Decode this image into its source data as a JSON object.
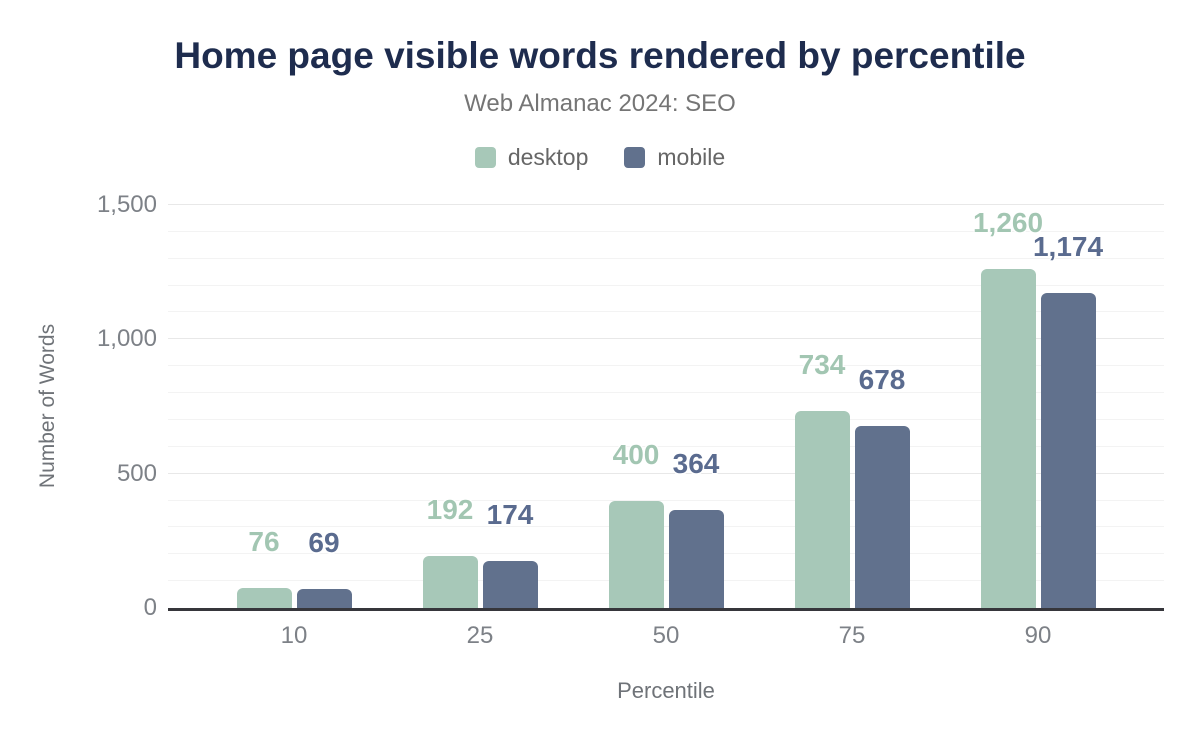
{
  "chart_data": {
    "type": "bar",
    "title": "Home page visible words rendered by percentile",
    "subtitle": "Web Almanac 2024: SEO",
    "xlabel": "Percentile",
    "ylabel": "Number of Words",
    "categories": [
      "10",
      "25",
      "50",
      "75",
      "90"
    ],
    "series": [
      {
        "name": "desktop",
        "values": [
          76,
          192,
          400,
          734,
          1260
        ],
        "color": "#a7c8b8",
        "label_color": "#a2c6b2"
      },
      {
        "name": "mobile",
        "values": [
          69,
          174,
          364,
          678,
          1174
        ],
        "color": "#61718d",
        "label_color": "#5a6b8f"
      }
    ],
    "ylim": [
      0,
      1500
    ],
    "y_major_ticks": [
      0,
      500,
      1000,
      1500
    ],
    "y_minor_step": 100,
    "grid": true,
    "legend_position": "top"
  },
  "colors": {
    "title": "#1e2c4e",
    "subtitle": "#757575",
    "legend_text": "#666666",
    "tick_text": "#7d8187",
    "axis_title_text": "#6f7378",
    "grid_minor": "#f3f3f3",
    "grid_major": "#e8e8e8",
    "axis_line": "#36363b",
    "background": "#ffffff"
  }
}
